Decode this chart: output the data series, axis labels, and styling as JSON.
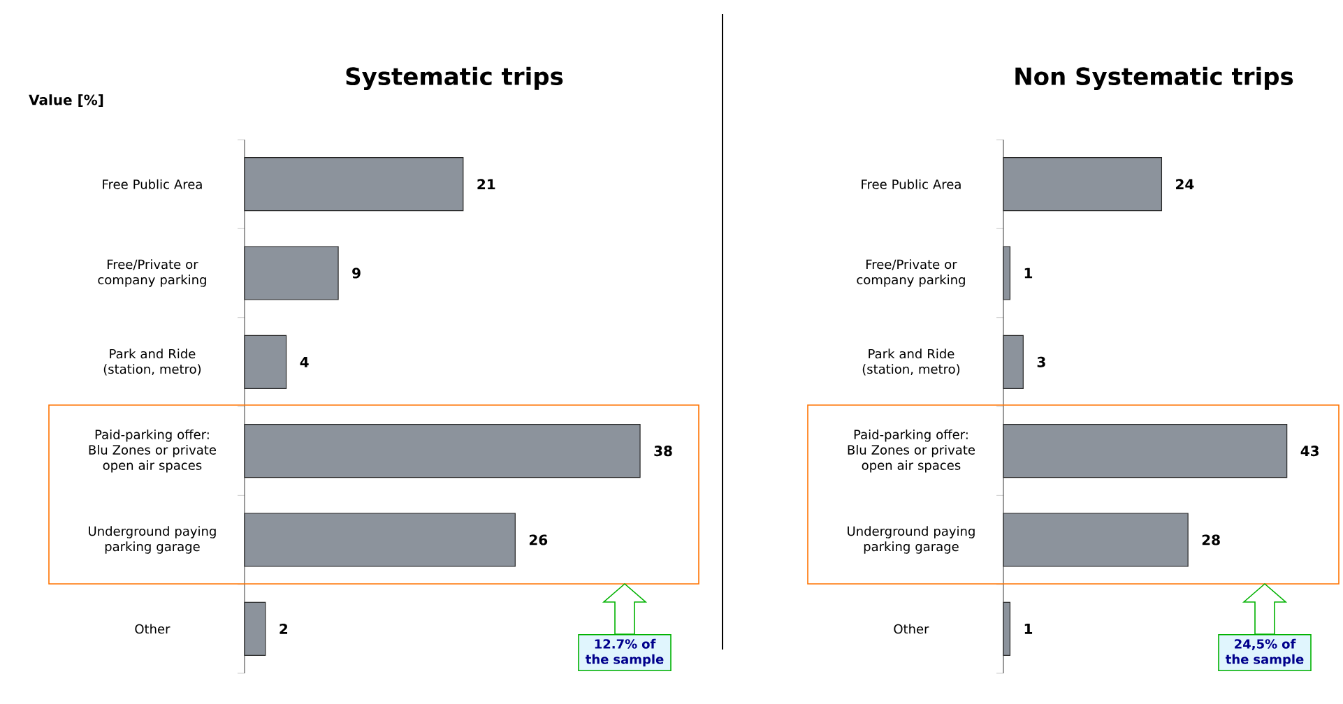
{
  "chart_data": [
    {
      "type": "bar",
      "orientation": "horizontal",
      "title": "Systematic trips",
      "ylabel": "Value [%]",
      "categories": [
        "Free Public Area",
        "Free/Private or company parking",
        "Park and Ride (station, metro)",
        "Paid-parking offer: Blu Zones or private open air spaces",
        "Underground paying parking garage",
        "Other"
      ],
      "values": [
        21,
        9,
        4,
        38,
        26,
        2
      ],
      "color": "#8c939c",
      "data_labels": true,
      "tick_labels": "y",
      "annotations": [
        "12.7% of the sample"
      ]
    },
    {
      "type": "bar",
      "orientation": "horizontal",
      "title": "Non Systematic trips",
      "categories": [
        "Free Public Area",
        "Free/Private or company parking",
        "Park and Ride (station, metro)",
        "Paid-parking offer: Blu Zones or private open air spaces",
        "Underground paying parking garage",
        "Other"
      ],
      "values": [
        24,
        1,
        3,
        43,
        28,
        1
      ],
      "color": "#8c939c",
      "data_labels": true,
      "tick_labels": "y",
      "annotations": [
        "24,5% of the sample"
      ]
    }
  ]
}
